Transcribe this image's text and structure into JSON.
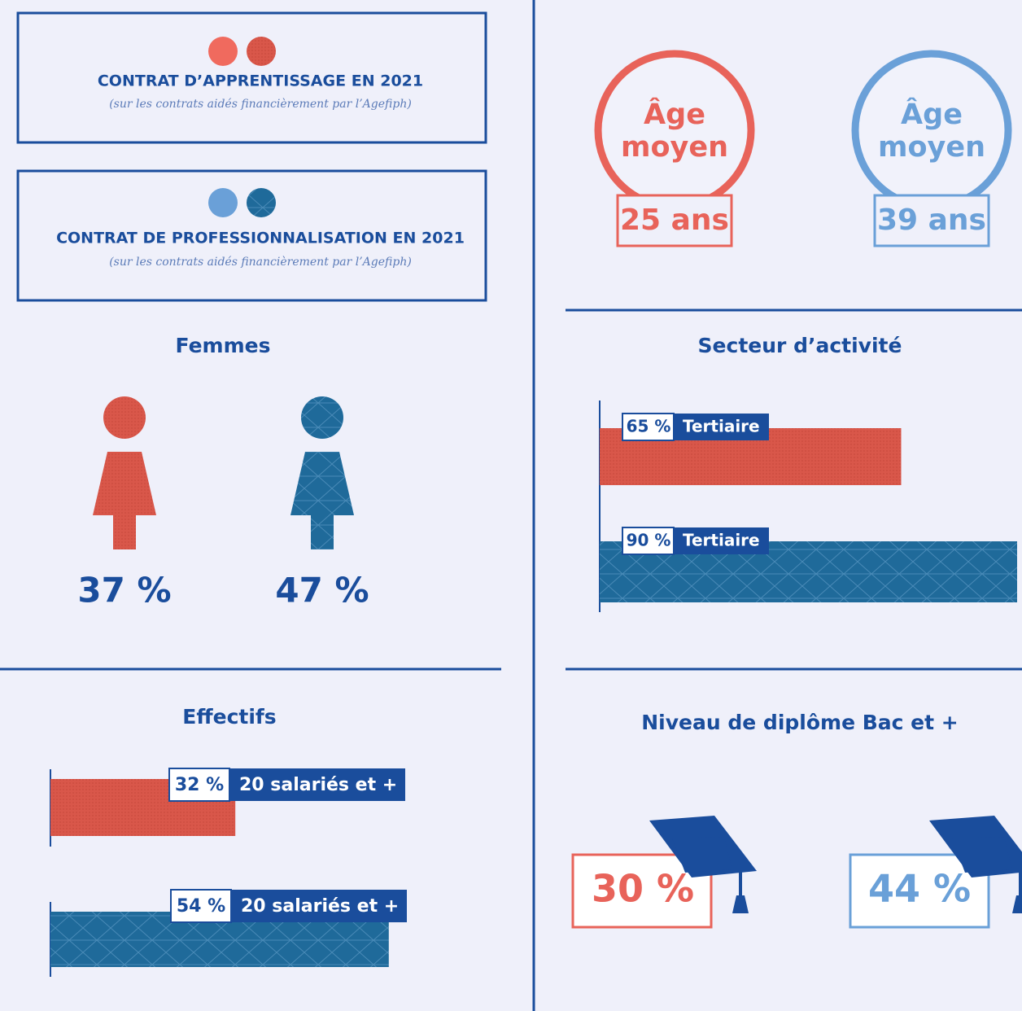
{
  "legend": [
    {
      "title": "CONTRAT D’APPRENTISSAGE EN 2021",
      "subtitle": "(sur les contrats aidés financièrement par l’Agefiph)"
    },
    {
      "title": "CONTRAT DE PROFESSIONNALISATION EN 2021",
      "subtitle": "(sur les contrats aidés financièrement par l’Agefiph)"
    }
  ],
  "age": {
    "label_lines": [
      "Âge",
      "moyen"
    ],
    "values": [
      "25 ans",
      "39 ans"
    ]
  },
  "femmes": {
    "title": "Femmes",
    "values": [
      "37 %",
      "47 %"
    ]
  },
  "secteur": {
    "title": "Secteur d’activité",
    "bars": [
      {
        "value": 65,
        "label": "65 %",
        "category": "Tertiaire"
      },
      {
        "value": 90,
        "label": "90 %",
        "category": "Tertiaire"
      }
    ]
  },
  "effectifs": {
    "title": "Effectifs",
    "bars": [
      {
        "value": 32,
        "label": "32 %",
        "category": "20 salariés et +"
      },
      {
        "value": 54,
        "label": "54 %",
        "category": "20 salariés et +"
      }
    ]
  },
  "diplome": {
    "title": "Niveau de diplôme Bac et +",
    "values": [
      "30 %",
      "44 %"
    ]
  }
}
